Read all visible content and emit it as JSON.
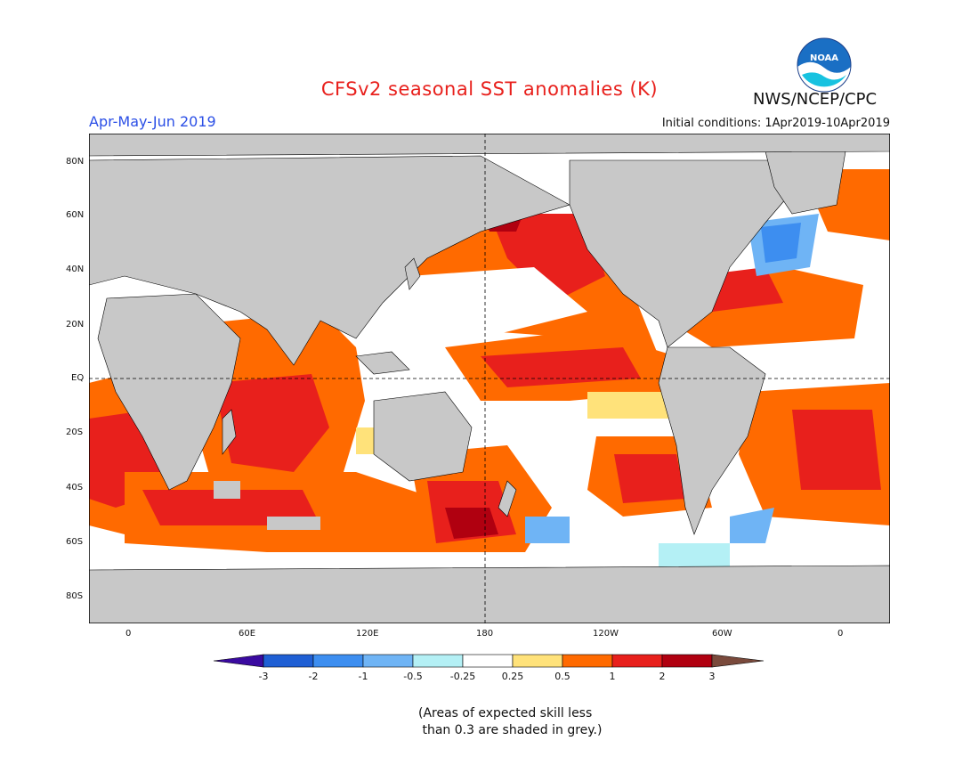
{
  "title": "CFSv2 seasonal SST anomalies (K)",
  "period": "Apr-May-Jun 2019",
  "initial_conditions": "Initial conditions: 1Apr2019-10Apr2019",
  "agency": "NWS/NCEP/CPC",
  "logo_text": "NOAA",
  "lat_labels": [
    "80N",
    "60N",
    "40N",
    "20N",
    "EQ",
    "20S",
    "40S",
    "60S",
    "80S"
  ],
  "lon_labels": [
    "0",
    "60E",
    "120E",
    "180",
    "120W",
    "60W",
    "0"
  ],
  "colorbar": {
    "ticks": [
      "-3",
      "-2",
      "-1",
      "-0.5",
      "-0.25",
      "0.25",
      "0.5",
      "1",
      "2",
      "3"
    ],
    "colors": [
      "#3a0aa0",
      "#1f5fd4",
      "#3d8ef0",
      "#6fb4f5",
      "#b4f0f5",
      "#ffffff",
      "#ffe27a",
      "#ff6a00",
      "#e8201c",
      "#b00010",
      "#7a4a3c"
    ]
  },
  "note": [
    "(Areas of expected skill less",
    " than 0.3 are shaded in grey.)"
  ],
  "colors": {
    "ocean_skill_grey": "#c8c8c8",
    "land": "#c8c8c8",
    "title": "#e8201c",
    "period": "#2b4fe6"
  }
}
